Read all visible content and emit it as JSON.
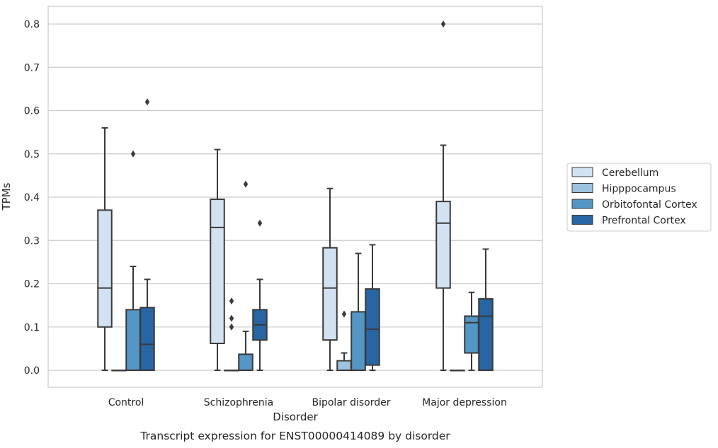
{
  "chart_data": {
    "type": "box",
    "title": "",
    "caption": "Transcript expression for ENST00000414089 by disorder",
    "xlabel": "Disorder",
    "ylabel": "TPMs",
    "ylim": [
      -0.04,
      0.84
    ],
    "yticks": [
      "0.0",
      "0.1",
      "0.2",
      "0.3",
      "0.4",
      "0.5",
      "0.6",
      "0.7",
      "0.8"
    ],
    "grid": "horizontal",
    "legend_position": "right",
    "categories": [
      "Control",
      "Schizophrenia",
      "Bipolar disorder",
      "Major depression"
    ],
    "series": [
      {
        "name": "Cerebellum",
        "color": "#d3e2f3",
        "boxes": [
          {
            "whislo": 0.0,
            "q1": 0.1,
            "med": 0.19,
            "q3": 0.37,
            "whishi": 0.56,
            "fliers": []
          },
          {
            "whislo": 0.0,
            "q1": 0.062,
            "med": 0.33,
            "q3": 0.395,
            "whishi": 0.51,
            "fliers": []
          },
          {
            "whislo": 0.0,
            "q1": 0.07,
            "med": 0.19,
            "q3": 0.283,
            "whishi": 0.42,
            "fliers": []
          },
          {
            "whislo": 0.0,
            "q1": 0.19,
            "med": 0.34,
            "q3": 0.39,
            "whishi": 0.52,
            "fliers": [
              0.8
            ]
          }
        ]
      },
      {
        "name": "Hipppocampus",
        "color": "#9ec3de",
        "boxes": [
          {
            "whislo": 0.0,
            "q1": 0.0,
            "med": 0.0,
            "q3": 0.0,
            "whishi": 0.0,
            "fliers": []
          },
          {
            "whislo": 0.0,
            "q1": 0.0,
            "med": 0.0,
            "q3": 0.0,
            "whishi": 0.0,
            "fliers": [
              0.1,
              0.12,
              0.16
            ]
          },
          {
            "whislo": 0.0,
            "q1": 0.0,
            "med": 0.0,
            "q3": 0.022,
            "whishi": 0.04,
            "fliers": [
              0.13
            ]
          },
          {
            "whislo": 0.0,
            "q1": 0.0,
            "med": 0.0,
            "q3": 0.0,
            "whishi": 0.0,
            "fliers": []
          }
        ]
      },
      {
        "name": "Orbitofontal Cortex",
        "color": "#5496c5",
        "boxes": [
          {
            "whislo": 0.0,
            "q1": 0.0,
            "med": 0.0,
            "q3": 0.14,
            "whishi": 0.24,
            "fliers": [
              0.5
            ]
          },
          {
            "whislo": 0.0,
            "q1": 0.0,
            "med": 0.0,
            "q3": 0.037,
            "whishi": 0.09,
            "fliers": [
              0.43
            ]
          },
          {
            "whislo": 0.0,
            "q1": 0.0,
            "med": 0.0,
            "q3": 0.135,
            "whishi": 0.27,
            "fliers": []
          },
          {
            "whislo": 0.0,
            "q1": 0.04,
            "med": 0.11,
            "q3": 0.125,
            "whishi": 0.18,
            "fliers": []
          }
        ]
      },
      {
        "name": "Prefrontal Cortex",
        "color": "#2865a3",
        "boxes": [
          {
            "whislo": 0.0,
            "q1": 0.0,
            "med": 0.06,
            "q3": 0.145,
            "whishi": 0.21,
            "fliers": [
              0.62
            ]
          },
          {
            "whislo": 0.0,
            "q1": 0.07,
            "med": 0.105,
            "q3": 0.14,
            "whishi": 0.21,
            "fliers": [
              0.34
            ]
          },
          {
            "whislo": 0.0,
            "q1": 0.012,
            "med": 0.095,
            "q3": 0.188,
            "whishi": 0.29,
            "fliers": []
          },
          {
            "whislo": 0.0,
            "q1": 0.0,
            "med": 0.125,
            "q3": 0.165,
            "whishi": 0.28,
            "fliers": []
          }
        ]
      }
    ]
  }
}
